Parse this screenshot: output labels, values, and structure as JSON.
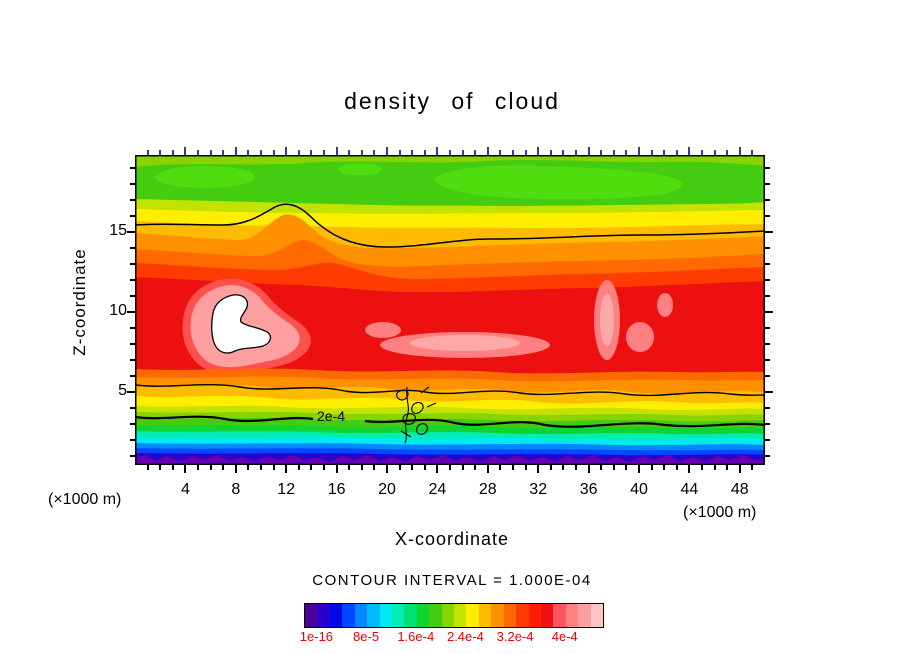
{
  "title": "density of cloud",
  "axes": {
    "x": {
      "label": "X-coordinate",
      "unit": "(×1000 m)",
      "tick_values": [
        4,
        8,
        12,
        16,
        20,
        24,
        28,
        32,
        36,
        40,
        44,
        48
      ],
      "range": [
        0,
        50
      ],
      "major_step": 4,
      "minor_step": 1
    },
    "z": {
      "label": "Z-coordinate",
      "unit": "(×1000 m)",
      "tick_values": [
        5,
        10,
        15
      ],
      "range": [
        0,
        20
      ],
      "major_step": 5,
      "minor_step": 1
    }
  },
  "footer": {
    "contour_interval_text": "CONTOUR INTERVAL = 1.000E-04"
  },
  "contour_label": "2e-4",
  "colorbar": {
    "labels": [
      "1e-16",
      "8e-5",
      "1.6e-4",
      "2.4e-4",
      "3.2e-4",
      "4e-4"
    ],
    "label_color": "#e60000",
    "colors": [
      "#4c0099",
      "#2a00cc",
      "#0008e8",
      "#0048ff",
      "#0088ff",
      "#00baff",
      "#00e8f0",
      "#00eeb4",
      "#00e070",
      "#10d430",
      "#44cc11",
      "#88d400",
      "#c4e200",
      "#ffee00",
      "#ffbb00",
      "#ff9100",
      "#ff6a00",
      "#ff3b00",
      "#ff1e00",
      "#ec1010",
      "#ff5560",
      "#ff8080",
      "#ff9f9f",
      "#ffc4c4"
    ]
  },
  "chart_data": {
    "type": "filled_contour",
    "title": "density of cloud",
    "xlabel": "X-coordinate",
    "ylabel": "Z-coordinate",
    "x_unit": "(×1000 m)",
    "z_unit": "(×1000 m)",
    "x_range": [
      0,
      50
    ],
    "z_range": [
      0,
      20
    ],
    "x_ticks": [
      4,
      8,
      12,
      16,
      20,
      24,
      28,
      32,
      36,
      40,
      44,
      48
    ],
    "z_ticks": [
      5,
      10,
      15
    ],
    "contour_interval": 0.0001,
    "contour_interval_text": "CONTOUR INTERVAL = 1.000E-04",
    "line_contour_label": {
      "text": "2e-4",
      "x_approx": 15,
      "z_approx": 3
    },
    "colorbar_boundary_labels": [
      "1e-16",
      "8e-5",
      "1.6e-4",
      "2.4e-4",
      "3.2e-4",
      "4e-4"
    ],
    "colorbar_cell_step": 2e-05,
    "grid": {
      "x": [
        2,
        6,
        10,
        14,
        18,
        22,
        26,
        30,
        34,
        38,
        42,
        46,
        50
      ],
      "z": [
        19,
        17,
        15,
        13,
        11,
        9,
        7,
        5,
        3,
        1
      ],
      "values_units": "1e-4",
      "values": [
        [
          1.8,
          1.7,
          1.6,
          1.6,
          1.5,
          1.4,
          1.4,
          1.4,
          1.4,
          1.4,
          1.5,
          1.6,
          1.7
        ],
        [
          2.1,
          2.0,
          1.9,
          1.8,
          1.7,
          1.7,
          1.7,
          1.7,
          1.7,
          1.7,
          1.8,
          1.9,
          2.0
        ],
        [
          2.5,
          2.6,
          2.5,
          2.3,
          2.2,
          2.2,
          2.2,
          2.2,
          2.2,
          2.2,
          2.2,
          2.3,
          2.3
        ],
        [
          2.7,
          2.9,
          2.9,
          2.7,
          2.6,
          2.6,
          2.6,
          2.6,
          2.6,
          2.7,
          2.6,
          2.6,
          2.6
        ],
        [
          3.0,
          3.3,
          3.5,
          3.1,
          3.0,
          3.0,
          3.1,
          3.0,
          3.0,
          3.2,
          3.1,
          3.0,
          3.0
        ],
        [
          3.2,
          3.9,
          4.5,
          3.6,
          3.4,
          3.5,
          3.5,
          3.4,
          3.4,
          3.7,
          3.5,
          3.3,
          3.2
        ],
        [
          3.3,
          3.7,
          4.1,
          3.8,
          3.5,
          3.4,
          3.6,
          3.5,
          3.4,
          3.6,
          3.4,
          3.3,
          3.2
        ],
        [
          2.9,
          3.1,
          3.3,
          3.2,
          3.0,
          3.0,
          3.1,
          3.0,
          3.0,
          3.1,
          3.0,
          2.9,
          2.8
        ],
        [
          2.1,
          2.2,
          2.3,
          2.1,
          2.0,
          1.9,
          2.0,
          2.0,
          2.0,
          2.2,
          1.9,
          1.8,
          1.9
        ],
        [
          0.8,
          0.8,
          0.9,
          0.8,
          0.8,
          0.7,
          0.8,
          0.8,
          0.8,
          0.8,
          0.8,
          0.8,
          0.8
        ]
      ]
    },
    "features": [
      "broad red maximum (3e-4 to 4e-4) between z~5 and z~13 across all x",
      "white enclosed region (>4.4e-4) near x~6-12, z~7-10 outlined by a black contour",
      "pink streaks (~3.8e-4) near x~16-22 z~8 and x~36-40 z~8-11",
      "green band (~1.4e-4 to 1.8e-4) above z~16",
      "sharp gradient below z~3: yellow, green, cyan, blue, purple down to near zero at the surface",
      "black line contours at the 2e-4 level; noisy 2e-4 contours near x~20-22, z~1-5"
    ]
  }
}
